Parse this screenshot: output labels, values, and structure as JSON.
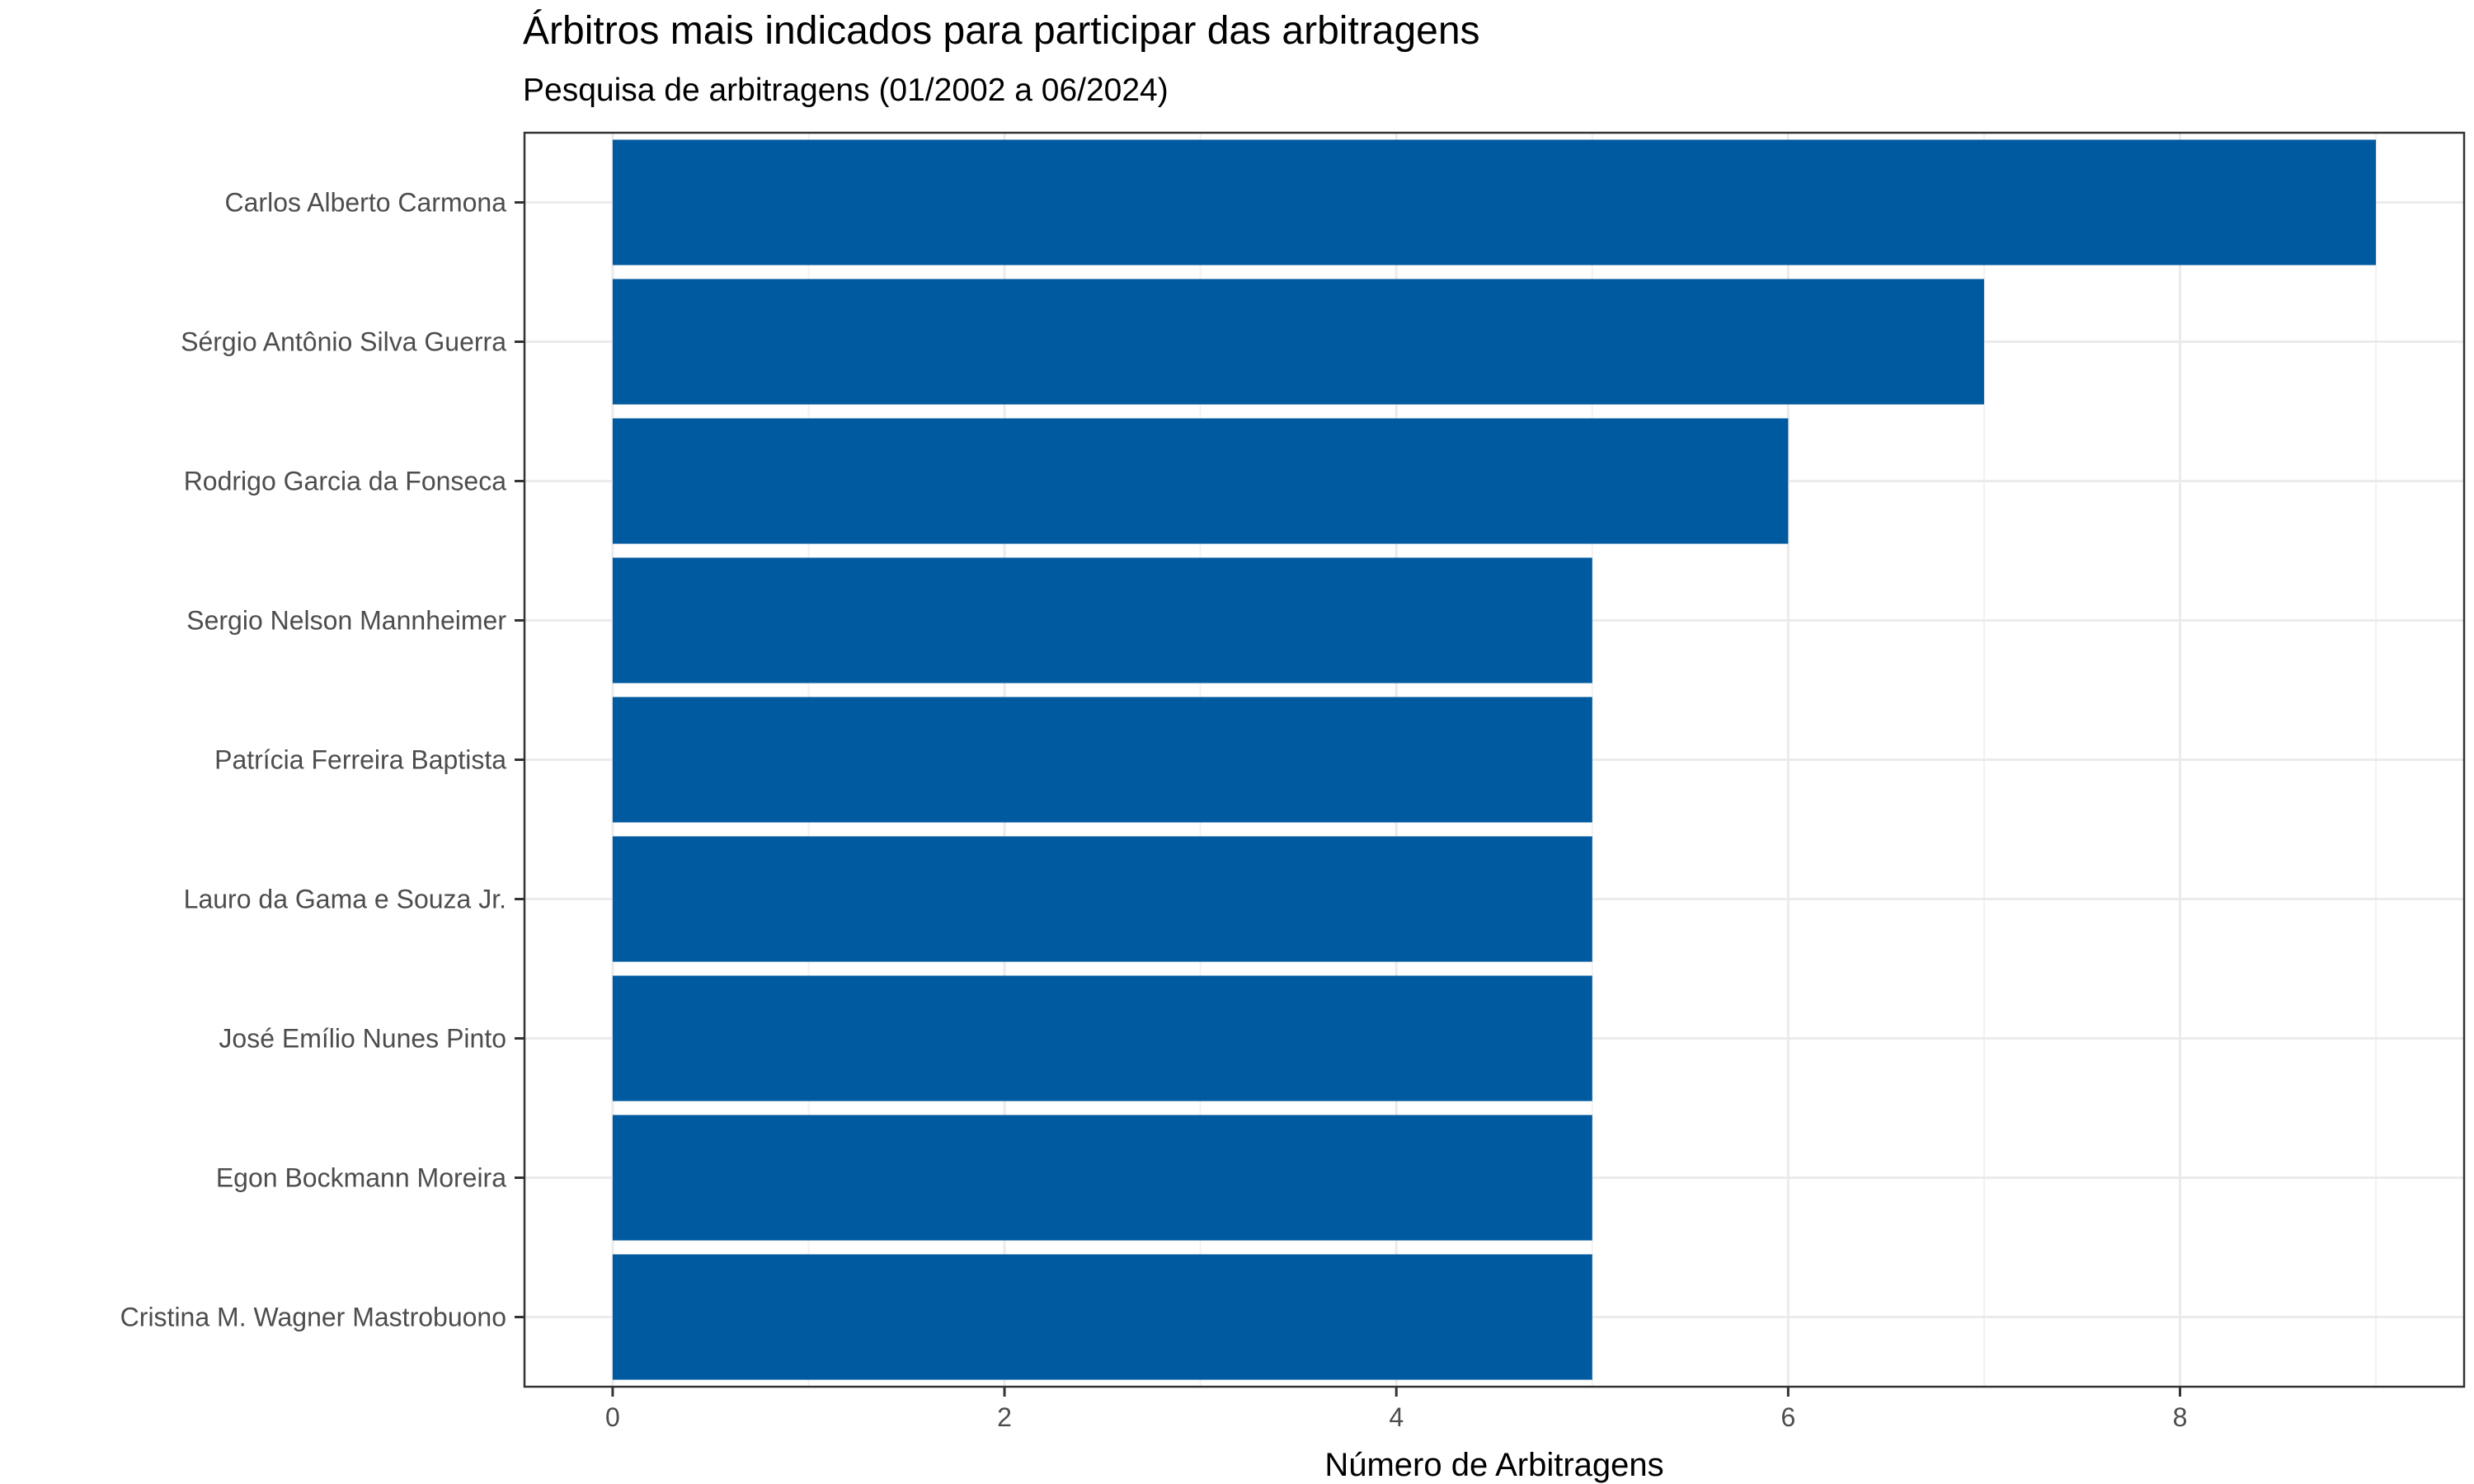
{
  "chart_data": {
    "type": "bar",
    "orientation": "horizontal",
    "title": "Árbitros mais indicados para participar das arbitragens",
    "subtitle": "Pesquisa de arbitragens (01/2002 a 06/2024)",
    "xlabel": "Número de Arbitragens",
    "ylabel": "",
    "categories": [
      "Carlos Alberto Carmona",
      "Sérgio Antônio Silva Guerra",
      "Rodrigo Garcia da Fonseca",
      "Sergio Nelson Mannheimer",
      "Patrícia Ferreira Baptista",
      "Lauro da Gama e Souza Jr.",
      "José Emílio Nunes Pinto",
      "Egon Bockmann Moreira",
      "Cristina M. Wagner Mastrobuono"
    ],
    "values": [
      9,
      7,
      6,
      5,
      5,
      5,
      5,
      5,
      5
    ],
    "xlim": [
      -0.45,
      9.45
    ],
    "xticks": [
      "0",
      "2",
      "4",
      "6",
      "8"
    ],
    "grid": true,
    "bar_color": "#005A9F"
  }
}
